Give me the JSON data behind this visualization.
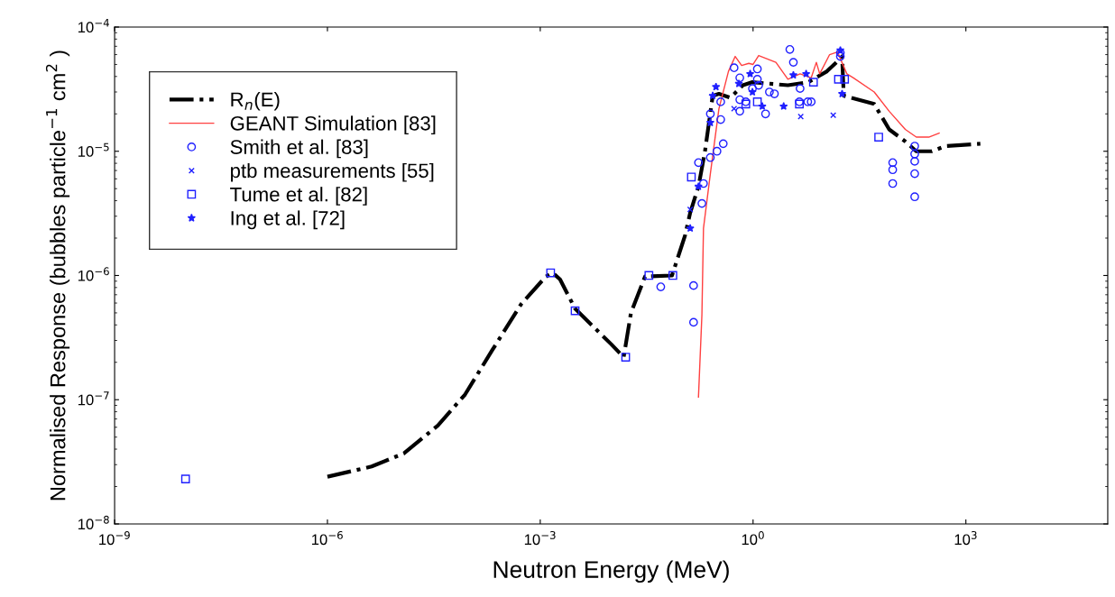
{
  "chart_data": {
    "type": "line",
    "xlabel": "Neutron Energy (MeV)",
    "ylabel": "Normalised Response (bubbles particle$^{−1}$ cm$^{2}$ )",
    "log": "xy",
    "grid": false,
    "legend": "top left",
    "xlim": [
      1e-09,
      100000.0
    ],
    "ylim": [
      1e-08,
      0.0001
    ],
    "xticks": [
      {
        "value": 1e-09,
        "label": "10$^{−9}$"
      },
      {
        "value": 1e-06,
        "label": "10$^{−6}$"
      },
      {
        "value": 0.001,
        "label": "10$^{−3}$"
      },
      {
        "value": 1,
        "label": "10$^{0}$"
      },
      {
        "value": 1000,
        "label": "10$^{3}$"
      }
    ],
    "yticks": [
      {
        "value": 1e-08,
        "label": "10$^{−8}$"
      },
      {
        "value": 1e-07,
        "label": "10$^{−7}$"
      },
      {
        "value": 1e-06,
        "label": "10$^{−6}$"
      },
      {
        "value": 1e-05,
        "label": "10$^{−5}$"
      },
      {
        "value": 0.0001,
        "label": "10$^{−4}$"
      }
    ],
    "series": [
      {
        "name": "R$_{n}$(E)",
        "color": "#000000",
        "line_style": "dashdot",
        "marker": "none",
        "x": [
          1e-06,
          4.2e-06,
          1.2e-05,
          3.6e-05,
          8.7e-05,
          0.00021,
          0.00054,
          0.0012,
          0.0015,
          0.0019,
          0.0031,
          0.01,
          0.015,
          0.019,
          0.03,
          0.072,
          0.11,
          0.13,
          0.17,
          0.21,
          0.27,
          0.33,
          0.48,
          0.72,
          0.98,
          1.7,
          3.1,
          6.0,
          11,
          16,
          18,
          19,
          51,
          83,
          140,
          200,
          330,
          520,
          1600
        ],
        "values": [
          2.4e-08,
          2.9e-08,
          3.7e-08,
          6.2e-08,
          1.1e-07,
          2.5e-07,
          5.9e-07,
          9.8e-07,
          1.05e-06,
          9.3e-07,
          5.4e-07,
          2.8e-07,
          2.2e-07,
          5e-07,
          9.8e-07,
          1e-06,
          2.1e-06,
          3.2e-06,
          5.2e-06,
          1e-05,
          2.8e-05,
          2.9e-05,
          2.7e-05,
          3.4e-05,
          3.6e-05,
          3.5e-05,
          3.4e-05,
          3.6e-05,
          4.4e-05,
          5.4e-05,
          5.8e-05,
          2.8e-05,
          2.4e-05,
          1.5e-05,
          1.2e-05,
          1e-05,
          1e-05,
          1.1e-05,
          1.15e-05
        ]
      },
      {
        "name": "GEANT Simulation [83]",
        "color": "#ff4040",
        "line_style": "solid",
        "marker": "none",
        "x": [
          0.17,
          0.19,
          0.2,
          0.25,
          0.33,
          0.45,
          0.56,
          0.69,
          0.87,
          1.0,
          1.2,
          2.1,
          3.1,
          4.6,
          6.6,
          7.8,
          8.7,
          12,
          15.5,
          21,
          26,
          51,
          83,
          140,
          200,
          300,
          420
        ],
        "values": [
          1.05e-07,
          4.8e-07,
          2.4e-06,
          6.6e-06,
          2.2e-05,
          4.4e-05,
          5.8e-05,
          4.9e-05,
          5.1e-05,
          5e-05,
          5.9e-05,
          5.2e-05,
          3.8e-05,
          4.2e-05,
          3.9e-05,
          5.2e-05,
          4.2e-05,
          6e-05,
          6.3e-05,
          4.2e-05,
          3.9e-05,
          3e-05,
          2.1e-05,
          1.5e-05,
          1.3e-05,
          1.3e-05,
          1.4e-05
        ]
      },
      {
        "name": "Smith et al. [83]",
        "type": "scatter",
        "color": "#2020ff",
        "marker": "circle",
        "x": [
          0.05,
          0.145,
          0.145,
          0.19,
          0.2,
          0.25,
          0.17,
          0.31,
          0.38,
          0.25,
          0.35,
          0.35,
          0.54,
          0.65,
          0.65,
          0.65,
          0.79,
          0.98,
          1.15,
          1.2,
          1.15,
          1.5,
          1.7,
          2.0,
          3.3,
          3.7,
          4.6,
          4.5,
          5.9,
          6.6,
          17,
          17,
          93,
          93,
          93,
          190,
          190,
          190,
          190,
          190
        ],
        "values": [
          8.1e-07,
          8.3e-07,
          4.2e-07,
          3.8e-06,
          5.5e-06,
          8.9e-06,
          8.1e-06,
          1e-05,
          1.15e-05,
          2e-05,
          1.8e-05,
          2.5e-05,
          4.7e-05,
          3.9e-05,
          2.1e-05,
          2.6e-05,
          2.5e-05,
          3.2e-05,
          4.6e-05,
          3.4e-05,
          3.8e-05,
          2e-05,
          3e-05,
          2.9e-05,
          6.6e-05,
          5.2e-05,
          3.2e-05,
          2.5e-05,
          2.5e-05,
          2.5e-05,
          6.2e-05,
          5.8e-05,
          8.1e-06,
          7.1e-06,
          5.5e-06,
          1.1e-05,
          9.5e-06,
          8.3e-06,
          6.6e-06,
          4.3e-06
        ]
      },
      {
        "name": "ptb measurements [55]",
        "type": "scatter",
        "color": "#2020ff",
        "marker": "cross",
        "x": [
          0.13,
          0.54,
          4.7,
          13.5
        ],
        "values": [
          3.4e-06,
          2.2e-05,
          1.9e-05,
          1.95e-05
        ]
      },
      {
        "name": "Tume et al. [82]",
        "type": "scatter",
        "color": "#2020ff",
        "marker": "square",
        "x": [
          1e-08,
          0.0014,
          0.0031,
          0.016,
          0.034,
          0.074,
          0.135,
          0.79,
          1.15,
          4.5,
          7.1,
          16,
          19.5,
          59
        ],
        "values": [
          2.3e-08,
          1.05e-06,
          5.2e-07,
          2.2e-07,
          1e-06,
          1e-06,
          6.2e-06,
          2.4e-05,
          2.5e-05,
          2.4e-05,
          3.6e-05,
          3.8e-05,
          3.8e-05,
          1.3e-05
        ]
      },
      {
        "name": "Ing et al. [72]",
        "type": "scatter",
        "color": "#2020ff",
        "marker": "star",
        "x": [
          0.3,
          0.27,
          0.25,
          0.17,
          0.13,
          0.91,
          0.63,
          0.98,
          2.7,
          3.7,
          5.6,
          18,
          1.35,
          17
        ],
        "values": [
          3.3e-05,
          2.8e-05,
          1.7e-05,
          5.2e-06,
          2.4e-06,
          4.2e-05,
          3.5e-05,
          3e-05,
          2.3e-05,
          4.1e-05,
          4.2e-05,
          2.9e-05,
          2.3e-05,
          6.5e-05
        ]
      }
    ]
  }
}
